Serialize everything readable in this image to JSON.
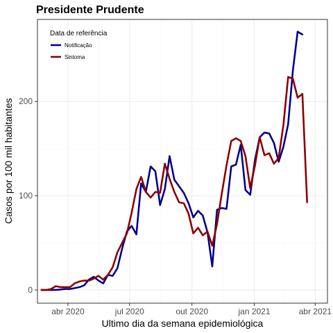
{
  "chart_data": {
    "type": "line",
    "title": "Presidente Prudente",
    "xlabel": "Ultimo dia da semana epidemiológica",
    "ylabel": "Casos por 100 mil habitantes",
    "x_ticks": [
      {
        "date": "2020-04-01",
        "label": "abr 2020"
      },
      {
        "date": "2020-07-01",
        "label": "jul 2020"
      },
      {
        "date": "2020-10-01",
        "label": "out 2020"
      },
      {
        "date": "2021-01-01",
        "label": "jan 2021"
      },
      {
        "date": "2021-04-01",
        "label": "abr 2021"
      }
    ],
    "y_ticks": [
      0,
      100,
      200
    ],
    "xlim": [
      "2020-02-16",
      "2021-04-19"
    ],
    "ylim": [
      -14,
      287
    ],
    "grid": true,
    "legend": {
      "title": "Data de referência",
      "position": "top-left"
    },
    "series": [
      {
        "name": "Notificação",
        "color": "#00008b",
        "points": [
          [
            "2020-02-22",
            0
          ],
          [
            "2020-02-29",
            0
          ],
          [
            "2020-03-07",
            0
          ],
          [
            "2020-03-14",
            0
          ],
          [
            "2020-03-21",
            0.5
          ],
          [
            "2020-03-28",
            1
          ],
          [
            "2020-04-04",
            1
          ],
          [
            "2020-04-11",
            2
          ],
          [
            "2020-04-18",
            3
          ],
          [
            "2020-04-25",
            5
          ],
          [
            "2020-05-02",
            11
          ],
          [
            "2020-05-09",
            14
          ],
          [
            "2020-05-16",
            10
          ],
          [
            "2020-05-23",
            7
          ],
          [
            "2020-05-30",
            16
          ],
          [
            "2020-06-06",
            15
          ],
          [
            "2020-06-13",
            23
          ],
          [
            "2020-06-20",
            44
          ],
          [
            "2020-06-27",
            62
          ],
          [
            "2020-07-04",
            68
          ],
          [
            "2020-07-11",
            59
          ],
          [
            "2020-07-18",
            113
          ],
          [
            "2020-07-25",
            104
          ],
          [
            "2020-08-01",
            131
          ],
          [
            "2020-08-08",
            126
          ],
          [
            "2020-08-15",
            90
          ],
          [
            "2020-08-22",
            107
          ],
          [
            "2020-08-29",
            142
          ],
          [
            "2020-09-05",
            117
          ],
          [
            "2020-09-12",
            110
          ],
          [
            "2020-09-19",
            103
          ],
          [
            "2020-09-26",
            92
          ],
          [
            "2020-10-03",
            77
          ],
          [
            "2020-10-10",
            84
          ],
          [
            "2020-10-17",
            79
          ],
          [
            "2020-10-24",
            61
          ],
          [
            "2020-10-31",
            25
          ],
          [
            "2020-11-07",
            85
          ],
          [
            "2020-11-14",
            87
          ],
          [
            "2020-11-21",
            86
          ],
          [
            "2020-11-28",
            131
          ],
          [
            "2020-12-05",
            133
          ],
          [
            "2020-12-12",
            154
          ],
          [
            "2020-12-19",
            106
          ],
          [
            "2020-12-26",
            101
          ],
          [
            "2021-01-02",
            138
          ],
          [
            "2021-01-09",
            162
          ],
          [
            "2021-01-16",
            167
          ],
          [
            "2021-01-23",
            166
          ],
          [
            "2021-01-30",
            156
          ],
          [
            "2021-02-06",
            136
          ],
          [
            "2021-02-13",
            152
          ],
          [
            "2021-02-20",
            176
          ],
          [
            "2021-02-27",
            233
          ],
          [
            "2021-03-06",
            274
          ],
          [
            "2021-03-13",
            271
          ]
        ]
      },
      {
        "name": "Sintoma",
        "color": "#8b0000",
        "points": [
          [
            "2020-02-22",
            0
          ],
          [
            "2020-02-29",
            0
          ],
          [
            "2020-03-07",
            1
          ],
          [
            "2020-03-14",
            4
          ],
          [
            "2020-03-21",
            3
          ],
          [
            "2020-03-28",
            3
          ],
          [
            "2020-04-04",
            3
          ],
          [
            "2020-04-11",
            7
          ],
          [
            "2020-04-18",
            9
          ],
          [
            "2020-04-25",
            10
          ],
          [
            "2020-05-02",
            10
          ],
          [
            "2020-05-09",
            12
          ],
          [
            "2020-05-16",
            15
          ],
          [
            "2020-05-23",
            11
          ],
          [
            "2020-05-30",
            16
          ],
          [
            "2020-06-06",
            24
          ],
          [
            "2020-06-13",
            40
          ],
          [
            "2020-06-20",
            50
          ],
          [
            "2020-06-27",
            60
          ],
          [
            "2020-07-04",
            82
          ],
          [
            "2020-07-11",
            107
          ],
          [
            "2020-07-18",
            120
          ],
          [
            "2020-07-25",
            104
          ],
          [
            "2020-08-01",
            98
          ],
          [
            "2020-08-08",
            104
          ],
          [
            "2020-08-15",
            103
          ],
          [
            "2020-08-22",
            134
          ],
          [
            "2020-08-29",
            118
          ],
          [
            "2020-09-05",
            104
          ],
          [
            "2020-09-12",
            93
          ],
          [
            "2020-09-19",
            92
          ],
          [
            "2020-09-26",
            81
          ],
          [
            "2020-10-03",
            60
          ],
          [
            "2020-10-10",
            66
          ],
          [
            "2020-10-17",
            58
          ],
          [
            "2020-10-24",
            62
          ],
          [
            "2020-10-31",
            47
          ],
          [
            "2020-11-07",
            70
          ],
          [
            "2020-11-14",
            102
          ],
          [
            "2020-11-21",
            132
          ],
          [
            "2020-11-28",
            158
          ],
          [
            "2020-12-05",
            161
          ],
          [
            "2020-12-12",
            158
          ],
          [
            "2020-12-19",
            142
          ],
          [
            "2020-12-26",
            108
          ],
          [
            "2021-01-02",
            132
          ],
          [
            "2021-01-09",
            162
          ],
          [
            "2021-01-16",
            143
          ],
          [
            "2021-01-23",
            145
          ],
          [
            "2021-01-30",
            134
          ],
          [
            "2021-02-06",
            140
          ],
          [
            "2021-02-13",
            175
          ],
          [
            "2021-02-20",
            226
          ],
          [
            "2021-02-27",
            224
          ],
          [
            "2021-03-06",
            204
          ],
          [
            "2021-03-13",
            208
          ],
          [
            "2021-03-20",
            93
          ]
        ]
      }
    ]
  }
}
